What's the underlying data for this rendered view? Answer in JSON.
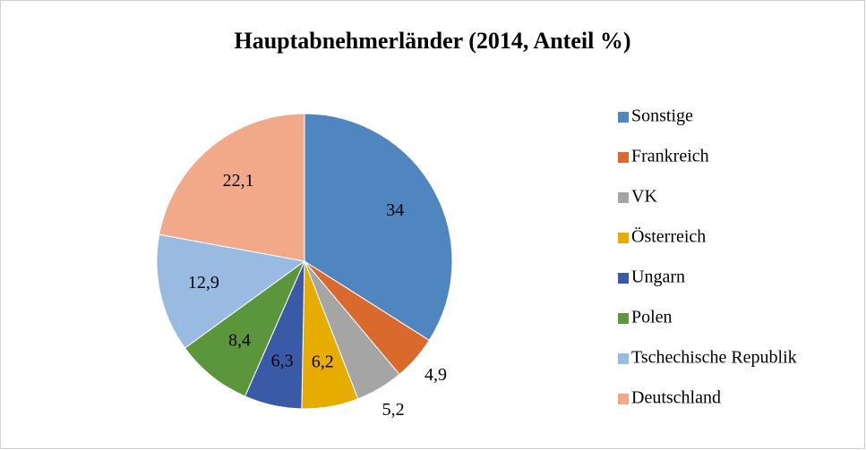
{
  "chart_data": {
    "type": "pie",
    "title": "Hauptabnehmerländer (2014, Anteil %)",
    "categories": [
      "Sonstige",
      "Frankreich",
      "VK",
      "Österreich",
      "Ungarn",
      "Polen",
      "Tschechische Republik",
      "Deutschland"
    ],
    "values": [
      34,
      4.9,
      5.2,
      6.2,
      6.3,
      8.4,
      12.9,
      22.1
    ],
    "value_labels": [
      "34",
      "4,9",
      "5,2",
      "6,2",
      "6,3",
      "8,4",
      "12,9",
      "22,1"
    ],
    "colors": [
      "#4f86c0",
      "#d9692c",
      "#a5a5a5",
      "#e6ad00",
      "#3a5aa8",
      "#5c963c",
      "#99bbe1",
      "#f2a98a"
    ],
    "legend": "right"
  }
}
